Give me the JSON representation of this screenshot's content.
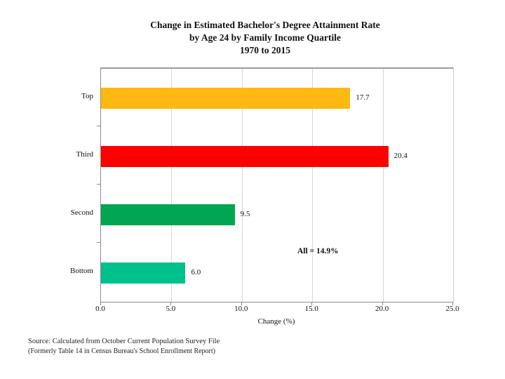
{
  "title": {
    "line1": "Change in Estimated Bachelor's Degree Attainment Rate",
    "line2": "by Age 24 by Family Income Quartile",
    "line3": "1970 to 2015"
  },
  "chart_data": {
    "type": "bar",
    "orientation": "horizontal",
    "categories": [
      "Top",
      "Third",
      "Second",
      "Bottom"
    ],
    "values": [
      17.7,
      20.4,
      9.5,
      6.0
    ],
    "value_labels": [
      "17.7",
      "20.4",
      "9.5",
      "6.0"
    ],
    "bar_colors": [
      "#FCB813",
      "#FE0000",
      "#00A651",
      "#00C08B"
    ],
    "annotation": "All = 14.9%",
    "xlabel": "Change (%)",
    "xlim": [
      0,
      25
    ],
    "xticks": [
      "0.0",
      "5.0",
      "10.0",
      "15.0",
      "20.0",
      "25.0"
    ],
    "grid": "vertical-light",
    "legend": "none"
  },
  "source": {
    "line1": "Source: Calculated from October Current Population Survey File",
    "line2": "(Formerly Table 14 in Census Bureau's School Enrollment Report)"
  },
  "colors": {
    "background": "#ffffff",
    "axis": "#8c8c8c",
    "gridline": "#d8d8d8",
    "text": "#111111"
  }
}
